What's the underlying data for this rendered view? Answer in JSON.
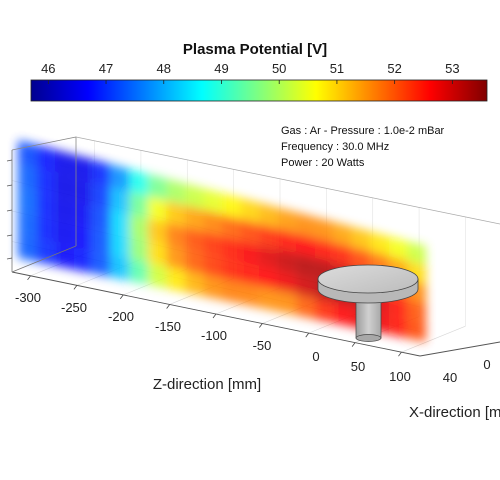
{
  "chart_data": {
    "type": "heatmap",
    "title": "Plasma Potential [V]",
    "colorbar": {
      "ticks": [
        "46",
        "47",
        "48",
        "49",
        "50",
        "51",
        "52",
        "53"
      ],
      "range": [
        45.7,
        53.6
      ],
      "colormap": "jet",
      "placement": "top"
    },
    "annotations": [
      "Gas : Ar - Pressure : 1.0e-2 mBar",
      "Frequency : 30.0 MHz",
      "Power : 20 Watts"
    ],
    "z_axis": {
      "label": "Z-direction [mm]",
      "ticks": [
        "-300",
        "-250",
        "-200",
        "-150",
        "-100",
        "-50",
        "0",
        "50",
        "100"
      ],
      "range": [
        -320,
        120
      ]
    },
    "x_axis": {
      "label": "X-direction [m",
      "ticks": [
        "40",
        "0"
      ]
    },
    "grid": true,
    "z_samples": [
      -320,
      -300,
      -280,
      -260,
      -240,
      -220,
      -200,
      -180,
      -160,
      -140,
      -120,
      -100,
      -80,
      -60,
      -40,
      -20,
      0,
      20,
      40,
      60,
      80,
      100,
      120
    ],
    "heights": [
      0.0,
      0.2,
      0.4,
      0.6,
      0.8,
      1.0
    ],
    "potential": [
      [
        47.5,
        47.2,
        46.8,
        46.6,
        47.0,
        47.6,
        48.6,
        49.6,
        50.2,
        50.6,
        51.0,
        51.2,
        51.2,
        51.0,
        50.8,
        50.9,
        51.6,
        52.0,
        52.3,
        52.6,
        52.6,
        52.3,
        51.8
      ],
      [
        47.6,
        47.1,
        46.7,
        46.5,
        46.9,
        47.6,
        48.9,
        50.2,
        51.0,
        51.5,
        51.9,
        52.1,
        52.2,
        52.2,
        52.2,
        52.4,
        52.8,
        53.0,
        53.1,
        53.0,
        52.8,
        52.4,
        51.8
      ],
      [
        47.8,
        47.1,
        46.6,
        46.5,
        46.8,
        47.7,
        49.2,
        50.8,
        51.6,
        52.0,
        52.3,
        52.5,
        52.7,
        52.9,
        53.1,
        53.3,
        53.4,
        53.4,
        53.2,
        53.0,
        52.6,
        52.2,
        51.6
      ],
      [
        47.8,
        47.1,
        46.6,
        46.4,
        46.7,
        47.6,
        49.0,
        50.6,
        51.4,
        51.8,
        52.0,
        52.2,
        52.4,
        52.6,
        52.8,
        53.0,
        53.0,
        52.9,
        52.7,
        52.4,
        52.0,
        51.6,
        51.0
      ],
      [
        47.6,
        47.0,
        46.6,
        46.4,
        46.6,
        47.4,
        48.6,
        49.8,
        50.4,
        50.8,
        51.0,
        51.3,
        51.6,
        51.8,
        52.0,
        52.2,
        52.2,
        52.1,
        51.8,
        51.5,
        51.1,
        50.8,
        50.3
      ],
      [
        47.4,
        46.9,
        46.6,
        46.5,
        46.6,
        47.1,
        48.0,
        48.8,
        49.2,
        49.4,
        49.6,
        49.8,
        50.1,
        50.4,
        50.7,
        50.9,
        51.0,
        50.9,
        50.7,
        50.5,
        50.3,
        50.0,
        49.7
      ]
    ]
  }
}
